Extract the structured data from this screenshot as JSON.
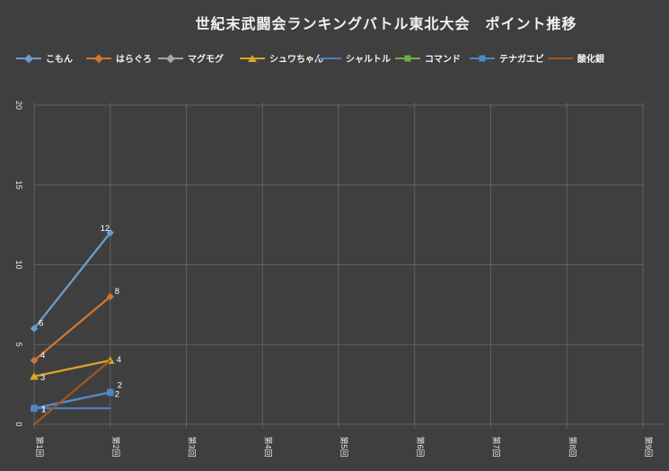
{
  "colors": {
    "background": "#3f3f3f",
    "gridline": "#606164",
    "text": "#f2f2f2"
  },
  "chart_data": {
    "type": "line",
    "title": "世紀末武闘会ランキングバトル東北大会　ポイント推移",
    "legend_position": "top",
    "grid": true,
    "x_axis": {
      "categories": [
        "第1回",
        "第2回",
        "第3回",
        "第4回",
        "第5回",
        "第6回",
        "第7回",
        "第8回",
        "第9回"
      ]
    },
    "y_axis": {
      "ticks": [
        0,
        5,
        10,
        15,
        20
      ],
      "min": 0,
      "max": 20
    },
    "series": [
      {
        "name": "こもん",
        "color": "#6d9bc8",
        "marker": "diamond",
        "x": [
          "第1回",
          "第2回"
        ],
        "values": [
          6,
          12
        ],
        "point_labels": [
          "6",
          "12"
        ]
      },
      {
        "name": "はらぐろ",
        "color": "#d1762f",
        "marker": "diamond",
        "x": [
          "第1回",
          "第2回"
        ],
        "values": [
          4,
          8
        ],
        "point_labels": [
          "4",
          "8"
        ]
      },
      {
        "name": "マグモグ",
        "color": "#a5a5a5",
        "marker": "diamond",
        "x": [
          "第1回",
          "第2回"
        ],
        "values": [
          1,
          2
        ],
        "point_labels": [
          "1",
          "2"
        ]
      },
      {
        "name": "シュワちゃん",
        "color": "#dca426",
        "marker": "triangle",
        "x": [
          "第1回",
          "第2回"
        ],
        "values": [
          3,
          4
        ],
        "point_labels": [
          "3",
          "4"
        ]
      },
      {
        "name": "シャルトル",
        "color": "#4f7db8",
        "marker": "none",
        "x": [
          "第1回",
          "第2回"
        ],
        "values": [
          1,
          1
        ],
        "point_labels": []
      },
      {
        "name": "コマンド",
        "color": "#70ad47",
        "marker": "square",
        "x": [],
        "values": [],
        "point_labels": []
      },
      {
        "name": "テナガエビ",
        "color": "#4f87c6",
        "marker": "square",
        "x": [
          "第1回",
          "第2回"
        ],
        "values": [
          1,
          2
        ],
        "point_labels": [
          "1",
          "2"
        ]
      },
      {
        "name": "酸化銀",
        "color": "#a0561e",
        "marker": "none",
        "x": [
          "第1回",
          "第2回"
        ],
        "values": [
          0,
          4
        ],
        "point_labels": []
      }
    ]
  }
}
